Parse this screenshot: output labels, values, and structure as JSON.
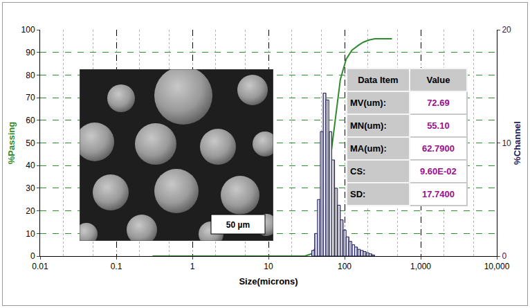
{
  "chart_data": {
    "type": "histogram",
    "xlabel": "Size(microns)",
    "ylabel": "%Passing",
    "y2label": "%Channel",
    "log": "x",
    "grid": true,
    "xlim": [
      0.01,
      10000
    ],
    "xticks": [
      0.01,
      0.1,
      1,
      10,
      100,
      {
        "value": 1000,
        "label": "1,000"
      },
      {
        "value": 10000,
        "label": "10,000"
      }
    ],
    "ylim": [
      0,
      100
    ],
    "yticks": [
      0,
      10,
      20,
      30,
      40,
      50,
      60,
      70,
      80,
      90,
      100
    ],
    "y2lim": [
      0,
      20
    ],
    "y2ticks": [
      0,
      10,
      20
    ],
    "series": [
      {
        "type": "histogram",
        "axis": "y2",
        "color": "#1c1c5c",
        "bins": [
          37,
          40.4,
          44,
          48,
          52.3,
          57,
          62.2,
          67.8,
          74,
          80.7,
          88,
          96,
          104.7,
          114.1,
          124.5,
          135.8,
          148,
          161.4,
          176,
          192,
          209.3,
          228.2,
          248.9
        ],
        "values": [
          0.5,
          2,
          5,
          11,
          14.4,
          13.8,
          11,
          8.5,
          6,
          4.5,
          3.2,
          2.3,
          1.7,
          1.3,
          1.0,
          0.8,
          0.6,
          0.5,
          0.4,
          0.3,
          0.2,
          0.1
        ]
      },
      {
        "type": "line",
        "color": "#2e8b2e",
        "x": [
          0.3,
          1,
          10,
          30,
          37,
          44,
          52,
          62,
          74,
          88,
          105,
          125,
          150,
          176,
          210,
          250,
          300,
          350,
          420
        ],
        "values": [
          0,
          0,
          0,
          0,
          1,
          5,
          17,
          37,
          58,
          78,
          87,
          91,
          93,
          94.5,
          95.5,
          96,
          96,
          96,
          96
        ]
      }
    ],
    "table": {
      "header": [
        "Data Item",
        "Value"
      ],
      "rows": [
        [
          "MV(um):",
          "72.69"
        ],
        [
          "MN(um):",
          "55.10"
        ],
        [
          "MA(um):",
          "62.7900"
        ],
        [
          "CS:",
          "9.60E-02"
        ],
        [
          "SD:",
          "17.7400"
        ]
      ]
    },
    "annotations": [
      {
        "text": "50 µm"
      }
    ]
  }
}
